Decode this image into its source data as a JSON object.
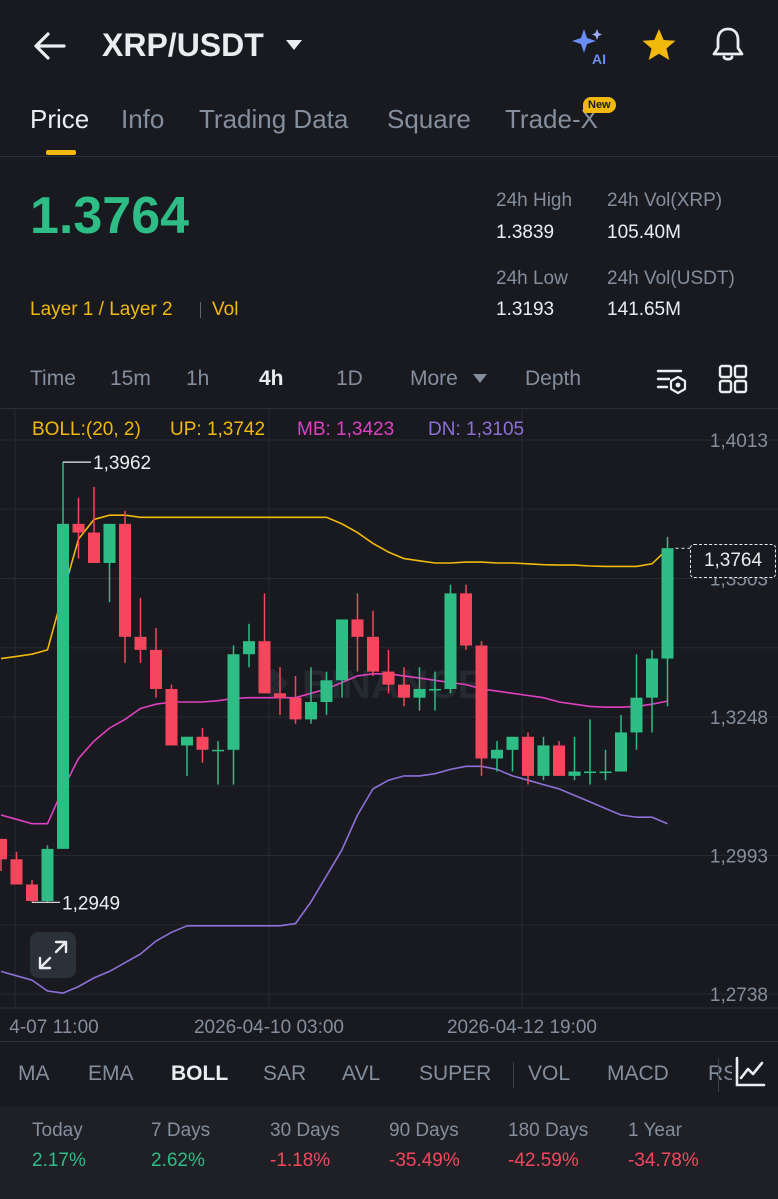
{
  "header": {
    "pair": "XRP/USDT",
    "ai_badge": "AI"
  },
  "tabs": [
    {
      "label": "Price"
    },
    {
      "label": "Info"
    },
    {
      "label": "Trading Data"
    },
    {
      "label": "Square"
    },
    {
      "label": "Trade-X"
    }
  ],
  "new_badge": "New",
  "price": {
    "last": "1.3764",
    "category": "Layer 1 / Layer 2",
    "vol_tag": "Vol",
    "stats": [
      {
        "label": "24h High",
        "value": "1.3839"
      },
      {
        "label": "24h Vol(XRP)",
        "value": "105.40M"
      },
      {
        "label": "24h Low",
        "value": "1.3193"
      },
      {
        "label": "24h Vol(USDT)",
        "value": "141.65M"
      }
    ]
  },
  "intervals": [
    {
      "label": "Time"
    },
    {
      "label": "15m"
    },
    {
      "label": "1h"
    },
    {
      "label": "4h"
    },
    {
      "label": "1D"
    },
    {
      "label": "More"
    },
    {
      "label": "Depth"
    }
  ],
  "boll": {
    "name": "BOLL:(20, 2)",
    "up": "UP: 1,3742",
    "mb": "MB: 1,3423",
    "dn": "DN: 1,3105"
  },
  "colors": {
    "up": "#2ebd85",
    "down": "#f6465d",
    "boll_up": "#f0b90b",
    "boll_mb": "#e040c0",
    "boll_dn": "#8f6fd8",
    "accent": "#f0b90b"
  },
  "chart_data": {
    "type": "candlestick",
    "ylim": [
      1.2738,
      1.4013
    ],
    "y_ticks": [
      "1,4013",
      "1,3503",
      "1,3248",
      "1,2993",
      "1,2738"
    ],
    "x_ticks": [
      "4-07 11:00",
      "2026-04-10 03:00",
      "2026-04-12 19:00"
    ],
    "last_price_label": "1,3764",
    "high_label": "1,3962",
    "low_label": "1,2949",
    "candles": [
      [
        1.3095,
        1.3095,
        1.3021,
        1.3048
      ],
      [
        1.3048,
        1.3065,
        1.299,
        1.299
      ],
      [
        1.299,
        1.3,
        1.2949,
        1.2952
      ],
      [
        1.2952,
        1.308,
        1.2949,
        1.3072
      ],
      [
        1.3072,
        1.3962,
        1.3072,
        1.382
      ],
      [
        1.382,
        1.388,
        1.374,
        1.38
      ],
      [
        1.38,
        1.3905,
        1.374,
        1.373
      ],
      [
        1.373,
        1.382,
        1.364,
        1.382
      ],
      [
        1.382,
        1.385,
        1.35,
        1.356
      ],
      [
        1.356,
        1.365,
        1.35,
        1.353
      ],
      [
        1.353,
        1.358,
        1.342,
        1.344
      ],
      [
        1.344,
        1.345,
        1.331,
        1.331
      ],
      [
        1.331,
        1.333,
        1.324,
        1.333
      ],
      [
        1.333,
        1.335,
        1.327,
        1.33
      ],
      [
        1.33,
        1.332,
        1.322,
        1.33
      ],
      [
        1.33,
        1.354,
        1.322,
        1.352
      ],
      [
        1.352,
        1.359,
        1.349,
        1.355
      ],
      [
        1.355,
        1.366,
        1.343,
        1.343
      ],
      [
        1.343,
        1.349,
        1.338,
        1.342
      ],
      [
        1.342,
        1.347,
        1.336,
        1.337
      ],
      [
        1.337,
        1.349,
        1.336,
        1.341
      ],
      [
        1.341,
        1.348,
        1.338,
        1.346
      ],
      [
        1.346,
        1.36,
        1.342,
        1.36
      ],
      [
        1.36,
        1.366,
        1.348,
        1.356
      ],
      [
        1.356,
        1.362,
        1.347,
        1.348
      ],
      [
        1.348,
        1.353,
        1.343,
        1.345
      ],
      [
        1.345,
        1.349,
        1.34,
        1.342
      ],
      [
        1.342,
        1.349,
        1.339,
        1.344
      ],
      [
        1.344,
        1.348,
        1.339,
        1.344
      ],
      [
        1.344,
        1.368,
        1.343,
        1.366
      ],
      [
        1.366,
        1.368,
        1.353,
        1.354
      ],
      [
        1.354,
        1.355,
        1.324,
        1.328
      ],
      [
        1.328,
        1.332,
        1.325,
        1.33
      ],
      [
        1.33,
        1.333,
        1.325,
        1.333
      ],
      [
        1.333,
        1.334,
        1.322,
        1.324
      ],
      [
        1.324,
        1.333,
        1.323,
        1.331
      ],
      [
        1.331,
        1.332,
        1.324,
        1.324
      ],
      [
        1.324,
        1.333,
        1.323,
        1.325
      ],
      [
        1.325,
        1.337,
        1.322,
        1.325
      ],
      [
        1.325,
        1.33,
        1.323,
        1.325
      ],
      [
        1.325,
        1.338,
        1.325,
        1.334
      ],
      [
        1.334,
        1.352,
        1.33,
        1.342
      ],
      [
        1.342,
        1.353,
        1.334,
        1.351
      ],
      [
        1.351,
        1.379,
        1.34,
        1.3764
      ]
    ],
    "boll_up_series": [
      1.351,
      1.3515,
      1.352,
      1.353,
      1.366,
      1.3785,
      1.383,
      1.384,
      1.384,
      1.3835,
      1.3835,
      1.3835,
      1.3835,
      1.3835,
      1.3835,
      1.3835,
      1.3835,
      1.3835,
      1.3835,
      1.3835,
      1.3835,
      1.3835,
      1.382,
      1.38,
      1.3775,
      1.3755,
      1.374,
      1.3735,
      1.373,
      1.373,
      1.3732,
      1.3732,
      1.373,
      1.373,
      1.3728,
      1.3726,
      1.3725,
      1.3725,
      1.3723,
      1.3722,
      1.3722,
      1.3722,
      1.3728,
      1.3762
    ],
    "boll_mb_series": [
      1.315,
      1.314,
      1.313,
      1.313,
      1.321,
      1.328,
      1.332,
      1.335,
      1.337,
      1.3395,
      1.3405,
      1.341,
      1.341,
      1.341,
      1.3413,
      1.3418,
      1.342,
      1.342,
      1.342,
      1.342,
      1.343,
      1.344,
      1.3455,
      1.347,
      1.3475,
      1.3475,
      1.347,
      1.3465,
      1.346,
      1.3455,
      1.345,
      1.344,
      1.3435,
      1.343,
      1.3425,
      1.342,
      1.341,
      1.3405,
      1.34,
      1.3398,
      1.3398,
      1.34,
      1.3405,
      1.3412
    ],
    "boll_dn_series": [
      1.279,
      1.278,
      1.277,
      1.2745,
      1.274,
      1.2755,
      1.2775,
      1.279,
      1.281,
      1.283,
      1.286,
      1.288,
      1.2895,
      1.2895,
      1.2895,
      1.2895,
      1.2895,
      1.2895,
      1.2895,
      1.29,
      1.295,
      1.301,
      1.307,
      1.315,
      1.321,
      1.323,
      1.324,
      1.324,
      1.3245,
      1.3255,
      1.3262,
      1.3262,
      1.3255,
      1.324,
      1.323,
      1.322,
      1.321,
      1.3195,
      1.318,
      1.3165,
      1.315,
      1.3145,
      1.3145,
      1.313
    ]
  },
  "indicators": [
    {
      "label": "MA"
    },
    {
      "label": "EMA"
    },
    {
      "label": "BOLL"
    },
    {
      "label": "SAR"
    },
    {
      "label": "AVL"
    },
    {
      "label": "SUPER"
    },
    {
      "label": "VOL"
    },
    {
      "label": "MACD"
    },
    {
      "label": "RSI"
    }
  ],
  "performance": [
    {
      "label": "Today",
      "value": "2.17%",
      "dir": "pos"
    },
    {
      "label": "7 Days",
      "value": "2.62%",
      "dir": "pos"
    },
    {
      "label": "30 Days",
      "value": "-1.18%",
      "dir": "neg"
    },
    {
      "label": "90 Days",
      "value": "-35.49%",
      "dir": "neg"
    },
    {
      "label": "180 Days",
      "value": "-42.59%",
      "dir": "neg"
    },
    {
      "label": "1 Year",
      "value": "-34.78%",
      "dir": "neg"
    }
  ]
}
